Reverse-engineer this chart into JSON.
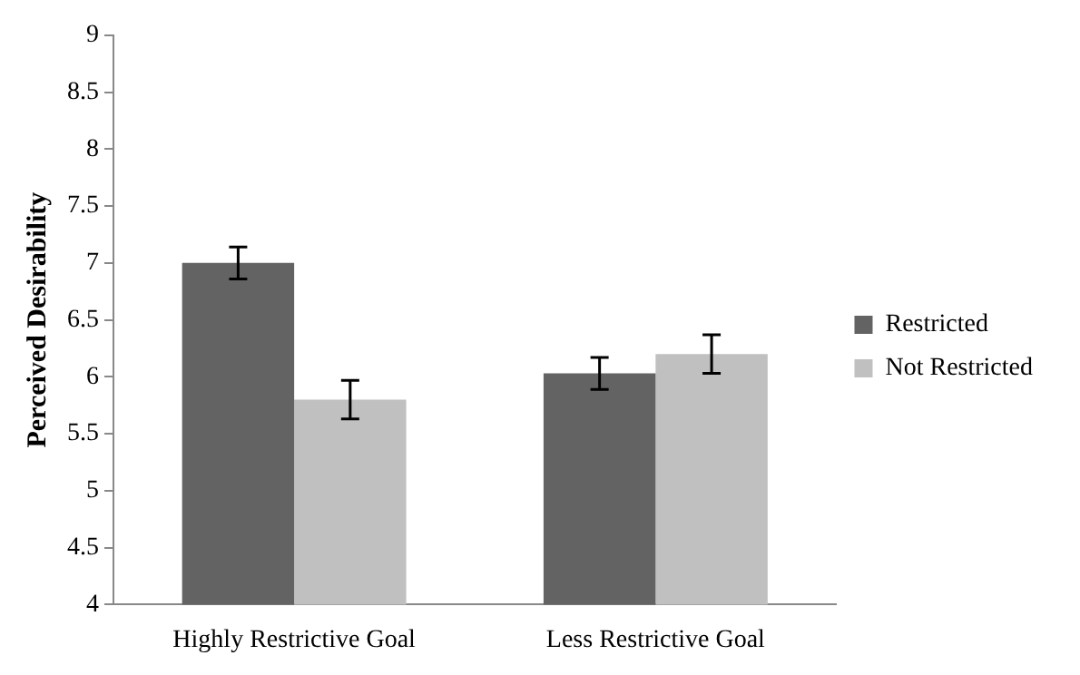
{
  "chart_data": {
    "type": "bar",
    "ylabel": "Perceived Desirability",
    "categories": [
      "Highly Restrictive Goal",
      "Less Restrictive Goal"
    ],
    "series": [
      {
        "name": "Restricted",
        "color": "#636363",
        "values": [
          7.0,
          6.03
        ],
        "errors": [
          0.14,
          0.14
        ]
      },
      {
        "name": "Not Restricted",
        "color": "#c0c0c0",
        "values": [
          5.8,
          6.2
        ],
        "errors": [
          0.17,
          0.17
        ]
      }
    ],
    "ylim": [
      4,
      9
    ],
    "yticks": [
      4,
      4.5,
      5,
      5.5,
      6,
      6.5,
      7,
      7.5,
      8,
      8.5,
      9
    ],
    "grid": false,
    "legend": "right"
  }
}
